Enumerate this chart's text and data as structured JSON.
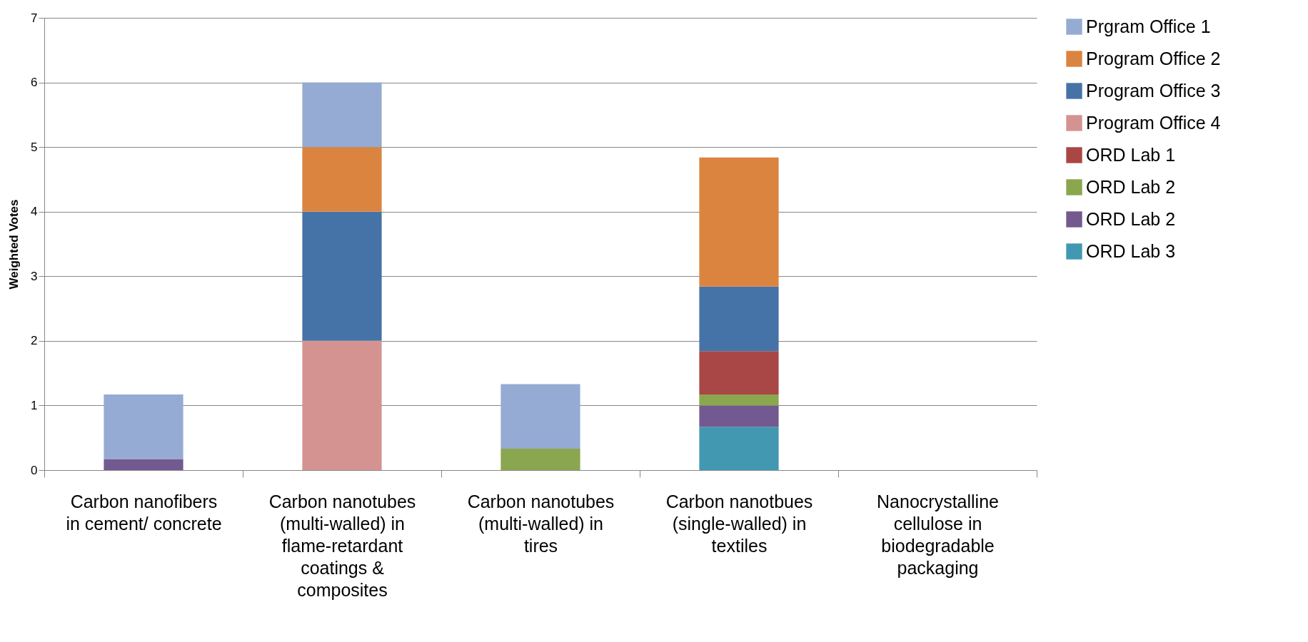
{
  "chart_data": {
    "type": "bar",
    "stacked": true,
    "ylabel": "Weighted Votes",
    "categories": [
      "Carbon nanofibers in cement/ concrete",
      "Carbon nanotubes (multi-walled) in flame-retardant coatings & composites",
      "Carbon nanotubes (multi-walled) in tires",
      "Carbon nanotbues (single-walled) in textiles",
      "Nanocrystalline cellulose in biodegradable packaging"
    ],
    "series": [
      {
        "name": "ORD Lab 3",
        "color": "#4298b0",
        "values": [
          null,
          null,
          null,
          0.67,
          null
        ]
      },
      {
        "name": "ORD Lab 2",
        "color": "#72598f",
        "values": [
          0.17,
          null,
          null,
          0.33,
          null
        ]
      },
      {
        "name": "ORD Lab 2",
        "color": "#8aa64f",
        "values": [
          null,
          null,
          0.33,
          0.17,
          null
        ]
      },
      {
        "name": "ORD Lab 1",
        "color": "#a84745",
        "values": [
          null,
          null,
          null,
          0.67,
          null
        ]
      },
      {
        "name": "Program Office 4",
        "color": "#d49391",
        "values": [
          null,
          2,
          null,
          null,
          null
        ]
      },
      {
        "name": "Program Office 3",
        "color": "#4673a7",
        "values": [
          null,
          2,
          null,
          1,
          null
        ]
      },
      {
        "name": "Program Office 2",
        "color": "#db8440",
        "values": [
          null,
          1,
          null,
          2,
          null
        ]
      },
      {
        "name": "Prgram Office 1",
        "color": "#95abd3",
        "values": [
          1,
          1,
          1,
          null,
          null
        ]
      }
    ],
    "ylim": [
      0,
      7
    ],
    "yticks": [
      0,
      1,
      2,
      3,
      4,
      5,
      6,
      7
    ],
    "grid": "y",
    "legend": "right"
  }
}
